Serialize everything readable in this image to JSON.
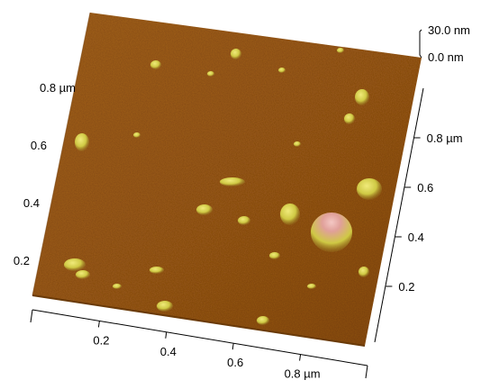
{
  "colors": {
    "surface_base": "#9b5b16",
    "surface_dark": "#7a4208",
    "surface_light": "#b8782a",
    "feature_yellow": "#d6d24a",
    "feature_pink": "#e4a4a0"
  },
  "z_scale": {
    "top_label": "30.0 nm",
    "bottom_label": "0.0 nm",
    "range_nm": [
      0.0,
      30.0
    ]
  },
  "axes": {
    "front_x": {
      "ticks": [
        {
          "value": 0.2,
          "label": "0.2"
        },
        {
          "value": 0.4,
          "label": "0.4"
        },
        {
          "value": 0.6,
          "label": "0.6"
        },
        {
          "value": 0.8,
          "label": "0.8 µm"
        }
      ]
    },
    "right_y": {
      "ticks": [
        {
          "value": 0.2,
          "label": "0.2"
        },
        {
          "value": 0.4,
          "label": "0.4"
        },
        {
          "value": 0.6,
          "label": "0.6"
        },
        {
          "value": 0.8,
          "label": "0.8 µm"
        }
      ]
    },
    "left_y": {
      "ticks": [
        {
          "value": 0.2,
          "label": "0.2"
        },
        {
          "value": 0.4,
          "label": "0.4"
        },
        {
          "value": 0.6,
          "label": "0.6"
        },
        {
          "value": 0.8,
          "label": "0.8 µm"
        }
      ]
    }
  }
}
